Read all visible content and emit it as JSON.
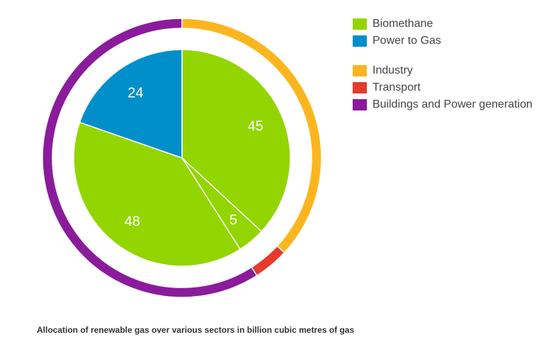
{
  "chart_data": {
    "type": "pie",
    "subtype": "nested-donut",
    "caption": "Allocation of renewable gas over various sectors in billion cubic metres of gas",
    "inner": {
      "slices": [
        {
          "label": "45",
          "value": 45,
          "source": "Biomethane",
          "color": "#93d500"
        },
        {
          "label": "5",
          "value": 5,
          "source": "Biomethane",
          "color": "#93d500"
        },
        {
          "label": "48",
          "value": 48,
          "source": "Biomethane",
          "color": "#93d500"
        },
        {
          "label": "24",
          "value": 24,
          "source": "Power to Gas",
          "color": "#008fcb"
        }
      ]
    },
    "outer": {
      "slices": [
        {
          "sector": "Industry",
          "value": 45,
          "color": "#fbb61f"
        },
        {
          "sector": "Transport",
          "value": 5,
          "color": "#e53a2c"
        },
        {
          "sector": "Buildings and Power generation",
          "value": 72,
          "color": "#8a1c9b"
        }
      ]
    },
    "legend": {
      "position": "top-right",
      "groups": [
        [
          {
            "label": "Biomethane",
            "color": "#93d500"
          },
          {
            "label": "Power to Gas",
            "color": "#008fcb"
          }
        ],
        [
          {
            "label": "Industry",
            "color": "#fbb61f"
          },
          {
            "label": "Transport",
            "color": "#e53a2c"
          },
          {
            "label": "Buildings and Power generation",
            "color": "#8a1c9b"
          }
        ]
      ]
    }
  }
}
